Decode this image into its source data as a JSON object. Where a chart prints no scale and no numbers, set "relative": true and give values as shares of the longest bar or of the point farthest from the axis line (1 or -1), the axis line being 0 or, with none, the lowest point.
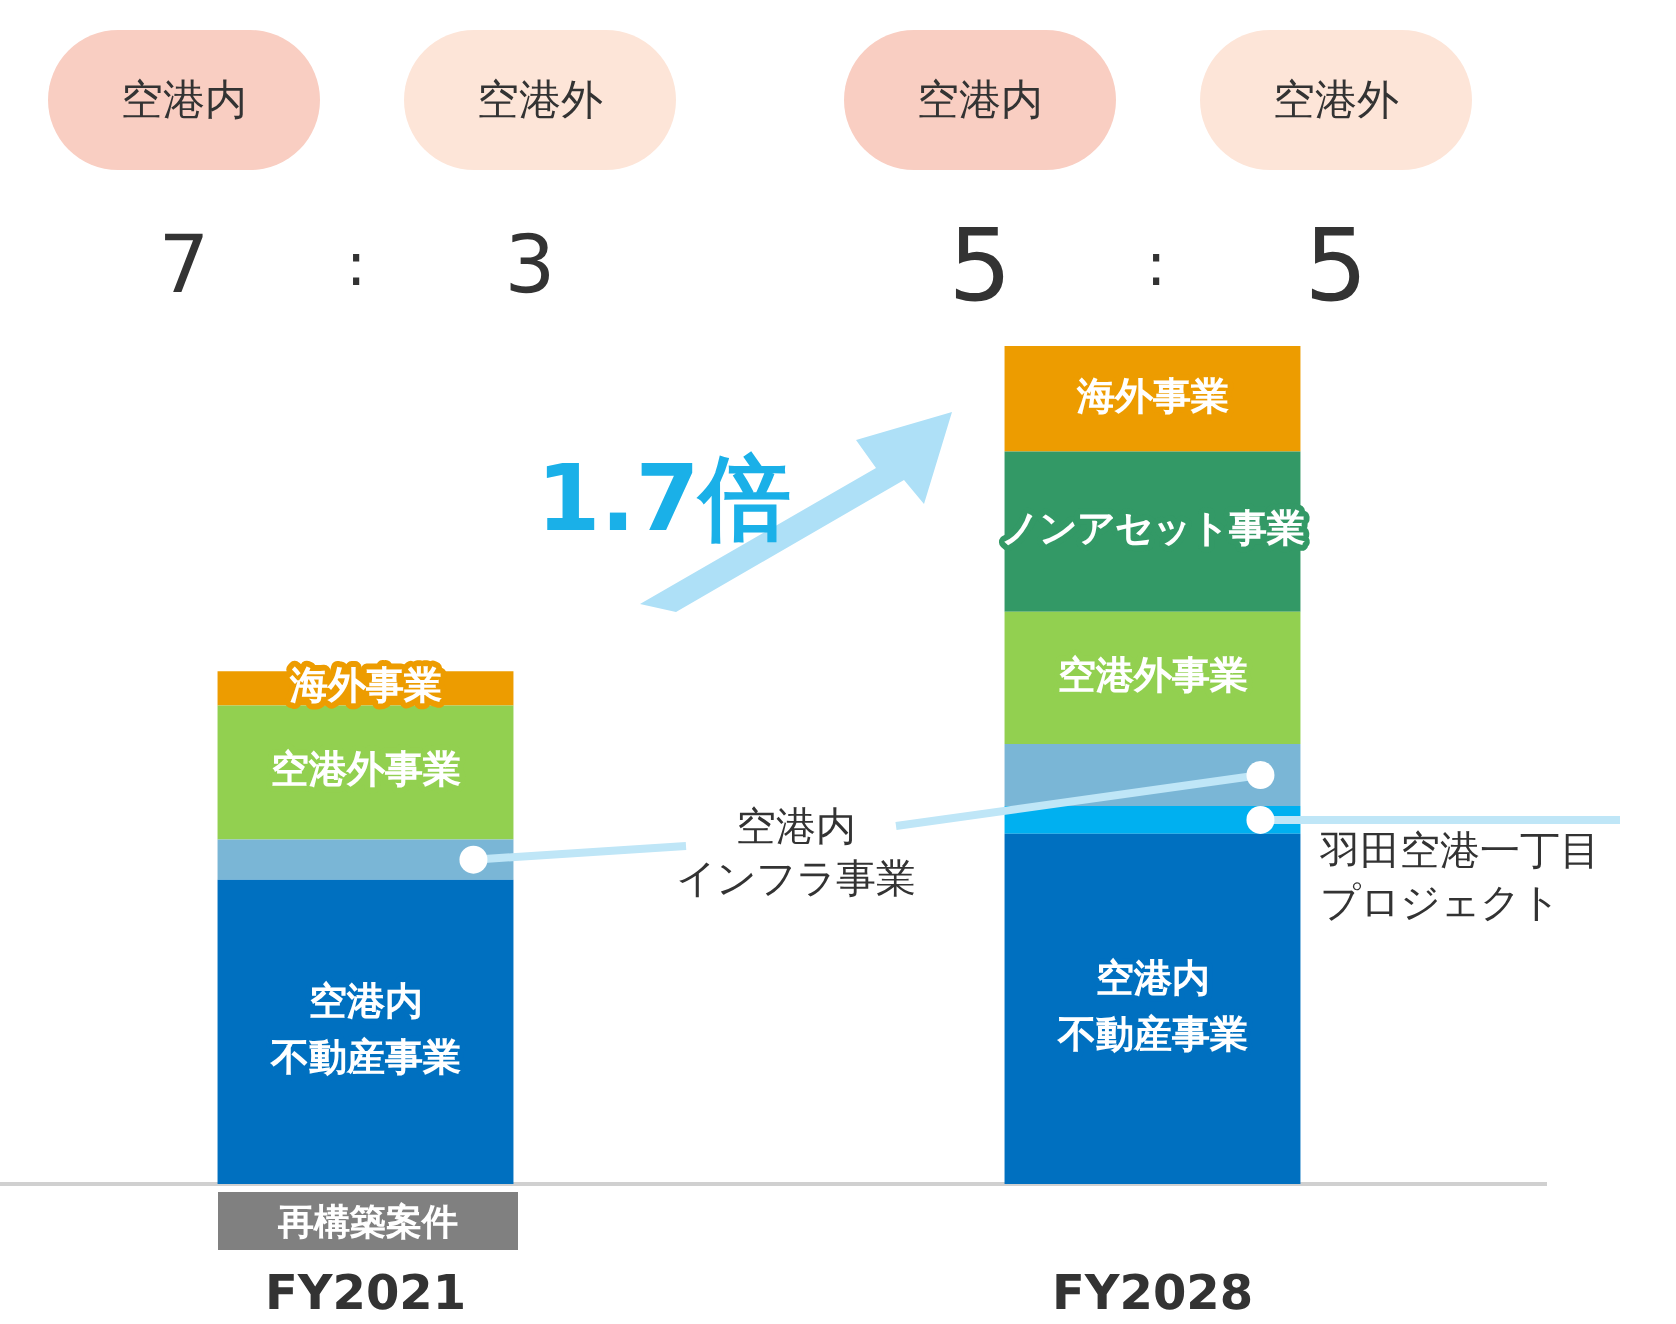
{
  "chart_data": {
    "type": "bar",
    "stacked": true,
    "relative": true,
    "legend": false,
    "grid": false,
    "categories": [
      "FY2021",
      "FY2028"
    ],
    "series": [
      {
        "name": "空港内不動産事業",
        "color": "#0070c0",
        "values": [
          0.363,
          0.418
        ]
      },
      {
        "name": "羽田空港一丁目プロジェクト",
        "color": "#00b0f0",
        "values": [
          null,
          0.033
        ]
      },
      {
        "name": "空港内インフラ事業",
        "color": "#7ab6d6",
        "values": [
          0.048,
          0.074
        ]
      },
      {
        "name": "空港外事業",
        "color": "#92d050",
        "values": [
          0.16,
          0.158
        ]
      },
      {
        "name": "ノンアセット事業",
        "color": "#339966",
        "values": [
          null,
          0.191
        ]
      },
      {
        "name": "海外事業",
        "color": "#ed9c00",
        "values": [
          0.041,
          0.126
        ]
      }
    ],
    "annotations": [
      "空港内",
      "空港外",
      "空港内",
      "空港外",
      "7 : 3",
      "5 : 5",
      "1.7倍",
      "再構築案件"
    ]
  }
}
